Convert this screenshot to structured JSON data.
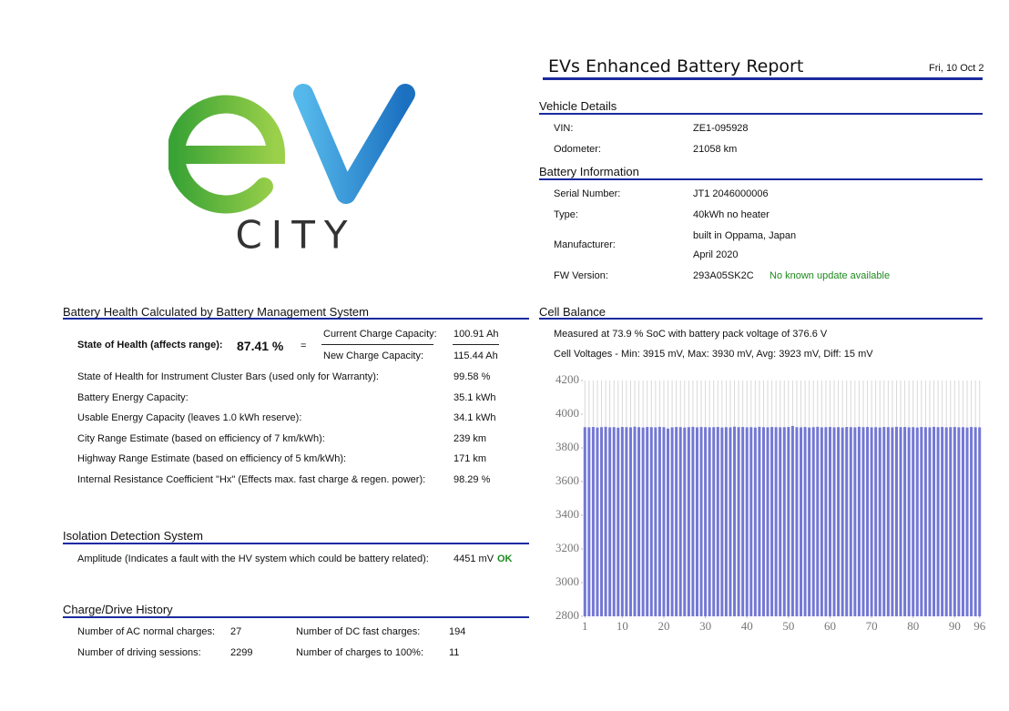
{
  "logo": {
    "text": "CITY"
  },
  "header": {
    "title": "EVs Enhanced Battery Report",
    "date": "Fri, 10 Oct 2"
  },
  "vehicle_details": {
    "title": "Vehicle Details",
    "rows": [
      [
        "VIN:",
        "ZE1-095928"
      ],
      [
        "Odometer:",
        "21058 km"
      ]
    ]
  },
  "battery_information": {
    "title": "Battery Information",
    "serial_number": [
      "Serial Number:",
      "JT1 2046000006"
    ],
    "type": [
      "Type:",
      "40kWh no heater"
    ],
    "manufacturer": [
      "Manufacturer:",
      "built in Oppama, Japan",
      "April 2020"
    ],
    "fw_version": [
      "FW Version:",
      "293A05SK2C",
      "No known update available"
    ]
  },
  "battery_health": {
    "title": "Battery Health Calculated by Battery Management System",
    "soh_label": "State of Health (affects range):",
    "soh_value": "87.41 %",
    "equals": "=",
    "current_capacity": [
      "Current Charge Capacity:",
      "100.91 Ah"
    ],
    "new_capacity": [
      "New Charge Capacity:",
      "115.44 Ah"
    ],
    "rows": [
      [
        "State of Health for Instrument Cluster Bars (used only for Warranty):",
        "99.58 %"
      ],
      [
        "Battery Energy Capacity:",
        "35.1 kWh"
      ],
      [
        "Usable Energy Capacity (leaves 1.0 kWh reserve):",
        "34.1 kWh"
      ],
      [
        "City Range Estimate (based on efficiency of 7 km/kWh):",
        "239 km"
      ],
      [
        "Highway Range Estimate (based on efficiency of 5 km/kWh):",
        "171 km"
      ],
      [
        "Internal Resistance Coefficient \"Hx\" (Effects max. fast charge & regen. power):",
        "98.29 %"
      ]
    ]
  },
  "isolation": {
    "title": "Isolation Detection System",
    "label": "Amplitude (Indicates a fault with the HV system which could be battery related):",
    "value": "4451 mV",
    "status": "OK"
  },
  "history": {
    "title": "Charge/Drive History",
    "ac_charges": [
      "Number of AC normal charges:",
      "27"
    ],
    "dc_charges": [
      "Number of DC fast charges:",
      "194"
    ],
    "driving_sessions": [
      "Number of driving sessions:",
      "2299"
    ],
    "full_charges": [
      "Number of charges to 100%:",
      "11"
    ]
  },
  "cell_balance": {
    "title": "Cell Balance",
    "measured": "Measured at 73.9 % SoC with battery pack voltage of 376.6 V",
    "voltages": "Cell Voltages - Min: 3915 mV, Max: 3930 mV, Avg: 3923 mV, Diff: 15 mV"
  },
  "chart_data": {
    "type": "bar",
    "color": "#7377d4",
    "x": [
      1,
      2,
      3,
      4,
      5,
      6,
      7,
      8,
      9,
      10,
      11,
      12,
      13,
      14,
      15,
      16,
      17,
      18,
      19,
      20,
      21,
      22,
      23,
      24,
      25,
      26,
      27,
      28,
      29,
      30,
      31,
      32,
      33,
      34,
      35,
      36,
      37,
      38,
      39,
      40,
      41,
      42,
      43,
      44,
      45,
      46,
      47,
      48,
      49,
      50,
      51,
      52,
      53,
      54,
      55,
      56,
      57,
      58,
      59,
      60,
      61,
      62,
      63,
      64,
      65,
      66,
      67,
      68,
      69,
      70,
      71,
      72,
      73,
      74,
      75,
      76,
      77,
      78,
      79,
      80,
      81,
      82,
      83,
      84,
      85,
      86,
      87,
      88,
      89,
      90,
      91,
      92,
      93,
      94,
      95,
      96
    ],
    "values": [
      3923,
      3922,
      3924,
      3921,
      3923,
      3925,
      3922,
      3923,
      3920,
      3924,
      3923,
      3922,
      3926,
      3923,
      3921,
      3924,
      3923,
      3922,
      3925,
      3923,
      3915,
      3922,
      3924,
      3923,
      3921,
      3923,
      3925,
      3922,
      3924,
      3923,
      3922,
      3923,
      3924,
      3921,
      3923,
      3922,
      3926,
      3923,
      3924,
      3922,
      3923,
      3921,
      3925,
      3923,
      3922,
      3924,
      3923,
      3922,
      3923,
      3924,
      3930,
      3923,
      3922,
      3924,
      3921,
      3923,
      3925,
      3922,
      3923,
      3924,
      3922,
      3923,
      3921,
      3924,
      3923,
      3922,
      3925,
      3923,
      3924,
      3922,
      3923,
      3921,
      3924,
      3923,
      3922,
      3925,
      3923,
      3924,
      3922,
      3923,
      3921,
      3924,
      3923,
      3922,
      3925,
      3923,
      3924,
      3922,
      3923,
      3924,
      3922,
      3923,
      3921,
      3924,
      3923,
      3922
    ],
    "xlim": [
      0.5,
      96.5
    ],
    "xticks": [
      1,
      10,
      20,
      30,
      40,
      50,
      60,
      70,
      80,
      90,
      96
    ],
    "ylim": [
      2800,
      4200
    ],
    "yticks": [
      2800,
      3000,
      3200,
      3400,
      3600,
      3800,
      4000,
      4200
    ]
  }
}
